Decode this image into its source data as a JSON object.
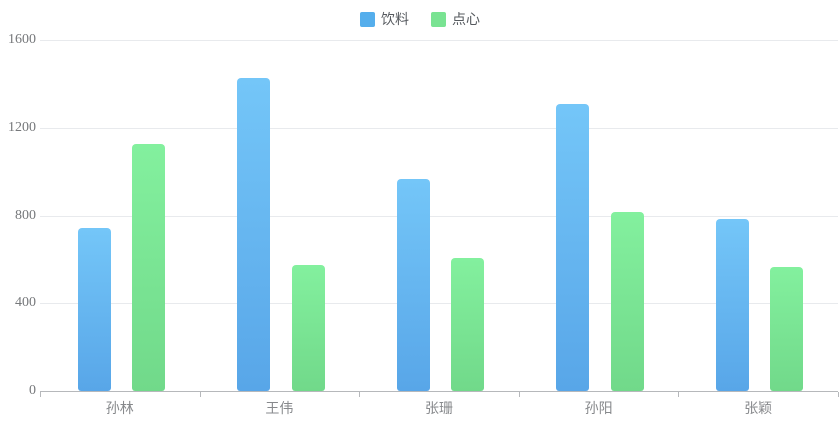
{
  "chart_data": {
    "type": "bar",
    "title": "",
    "categories": [
      "孙林",
      "王伟",
      "张珊",
      "孙阳",
      "张颖"
    ],
    "series": [
      {
        "name": "饮料",
        "values": [
          745,
          1425,
          965,
          1308,
          782
        ],
        "legend_color": "#55aeec",
        "color_top": "#74c6f8",
        "color_bottom": "#58a6e8"
      },
      {
        "name": "点心",
        "values": [
          1127,
          574,
          607,
          817,
          565
        ],
        "legend_color": "#79e392",
        "color_top": "#83f09e",
        "color_bottom": "#71d98a"
      }
    ],
    "xlabel": "",
    "ylabel": "",
    "ylim": [
      0,
      1600
    ],
    "yticks": [
      0,
      400,
      800,
      1200,
      1600
    ],
    "grid": true,
    "legend_position": "top-center",
    "style": {
      "grid_color": "#e8eaed",
      "axis_color": "#b6b8bb",
      "ytick_label_color": "#76787b",
      "xtick_label_color": "#87898c",
      "legend_text_color": "#55595e",
      "background": "#ffffff"
    }
  }
}
